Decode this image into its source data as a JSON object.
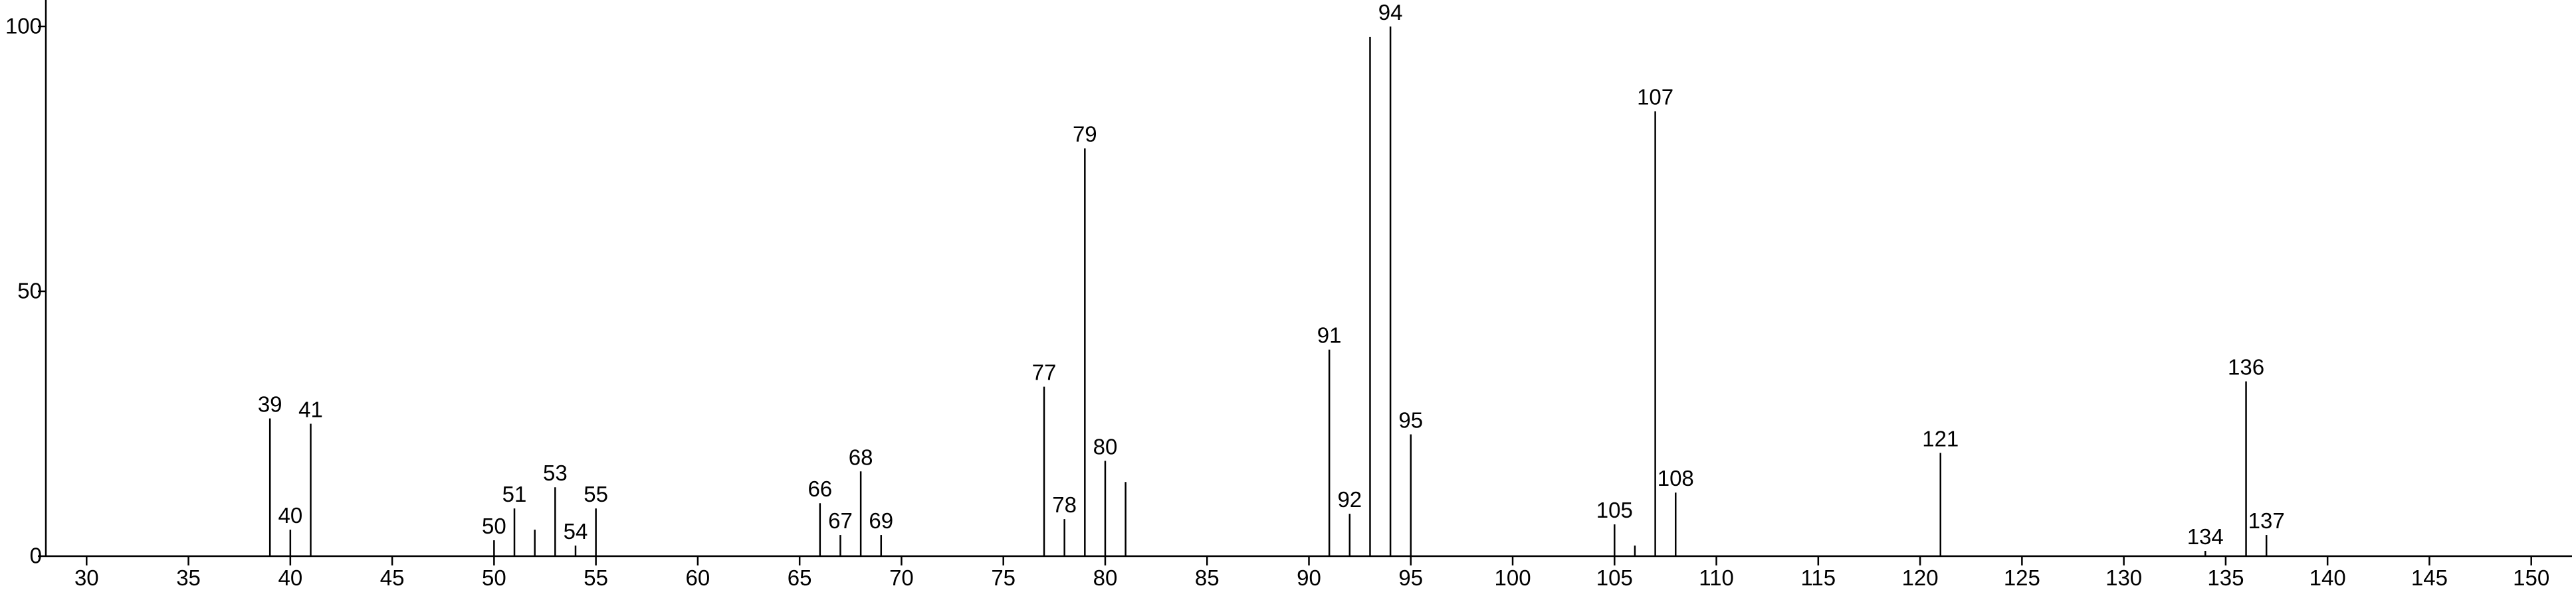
{
  "chart_data": {
    "type": "stem",
    "x": [
      39,
      40,
      41,
      50,
      51,
      52,
      53,
      54,
      55,
      66,
      67,
      68,
      69,
      77,
      78,
      79,
      80,
      81,
      91,
      92,
      93,
      94,
      95,
      105,
      106,
      107,
      108,
      121,
      134,
      136,
      137
    ],
    "values": [
      26,
      5,
      25,
      3,
      9,
      5,
      13,
      2,
      9,
      10,
      4,
      16,
      4,
      32,
      7,
      77,
      18,
      14,
      39,
      8,
      98,
      100,
      23,
      6,
      2,
      84,
      12,
      19.5,
      1,
      33,
      4
    ],
    "labeled": [
      true,
      true,
      true,
      true,
      true,
      false,
      true,
      true,
      true,
      true,
      true,
      true,
      true,
      true,
      true,
      true,
      true,
      false,
      true,
      true,
      false,
      true,
      true,
      true,
      false,
      true,
      true,
      true,
      true,
      true,
      true
    ],
    "color": "#000000",
    "xlim": [
      28,
      152
    ],
    "xticks": [
      30,
      35,
      40,
      45,
      50,
      55,
      60,
      65,
      70,
      75,
      80,
      85,
      90,
      95,
      100,
      105,
      110,
      115,
      120,
      125,
      130,
      135,
      140,
      145,
      150
    ],
    "ylim": [
      0,
      105
    ],
    "yticks": [
      0,
      50,
      100
    ]
  }
}
